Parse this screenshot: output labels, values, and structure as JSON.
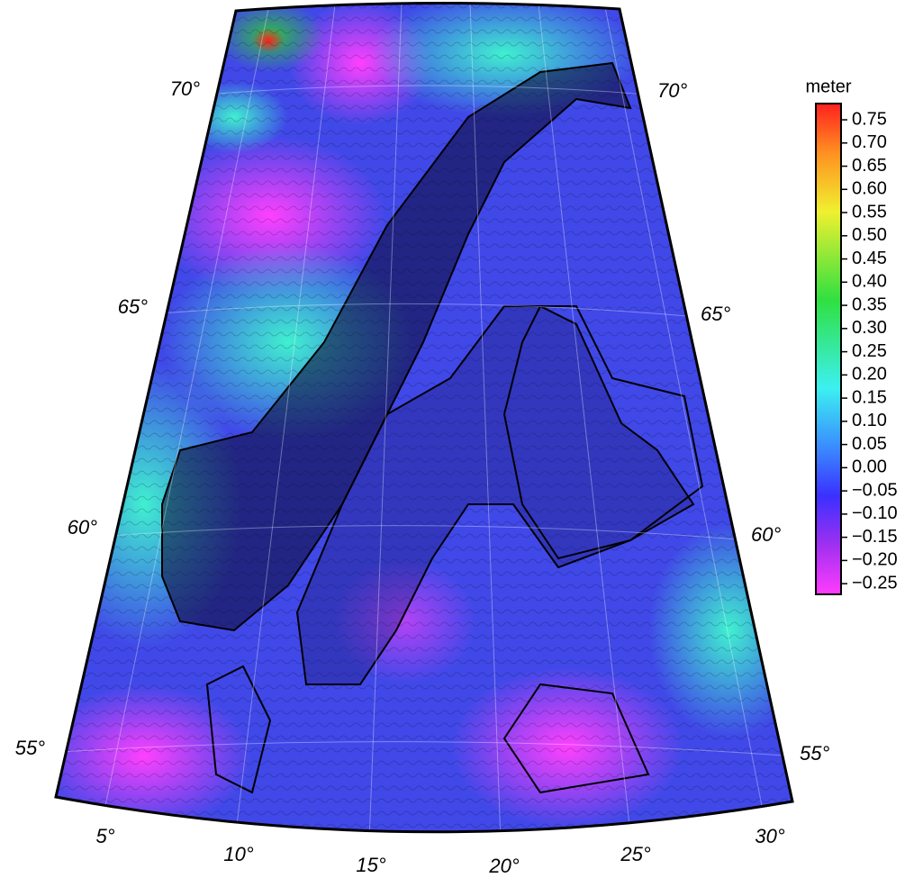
{
  "map": {
    "lat_labels_left": [
      "70°",
      "65°",
      "60°",
      "55°"
    ],
    "lat_labels_right": [
      "70°",
      "65°",
      "60°",
      "55°"
    ],
    "lon_labels": [
      "5°",
      "10°",
      "15°",
      "20°",
      "25°",
      "30°"
    ]
  },
  "colorbar": {
    "title": "meter",
    "range": [
      -0.273,
      0.785
    ],
    "ticks": [
      {
        "value": 0.75,
        "label": "0.75"
      },
      {
        "value": 0.7,
        "label": "0.70"
      },
      {
        "value": 0.65,
        "label": "0.65"
      },
      {
        "value": 0.6,
        "label": "0.60"
      },
      {
        "value": 0.55,
        "label": "0.55"
      },
      {
        "value": 0.5,
        "label": "0.50"
      },
      {
        "value": 0.45,
        "label": "0.45"
      },
      {
        "value": 0.4,
        "label": "0.40"
      },
      {
        "value": 0.35,
        "label": "0.35"
      },
      {
        "value": 0.3,
        "label": "0.30"
      },
      {
        "value": 0.25,
        "label": "0.25"
      },
      {
        "value": 0.2,
        "label": "0.20"
      },
      {
        "value": 0.15,
        "label": "0.15"
      },
      {
        "value": 0.1,
        "label": "0.10"
      },
      {
        "value": 0.05,
        "label": "0.05"
      },
      {
        "value": 0,
        "label": "0.00"
      },
      {
        "value": -0.05,
        "label": "−0.05"
      },
      {
        "value": -0.1,
        "label": "−0.10"
      },
      {
        "value": -0.15,
        "label": "−0.15"
      },
      {
        "value": -0.2,
        "label": "−0.20"
      },
      {
        "value": -0.25,
        "label": "−0.25"
      }
    ]
  }
}
